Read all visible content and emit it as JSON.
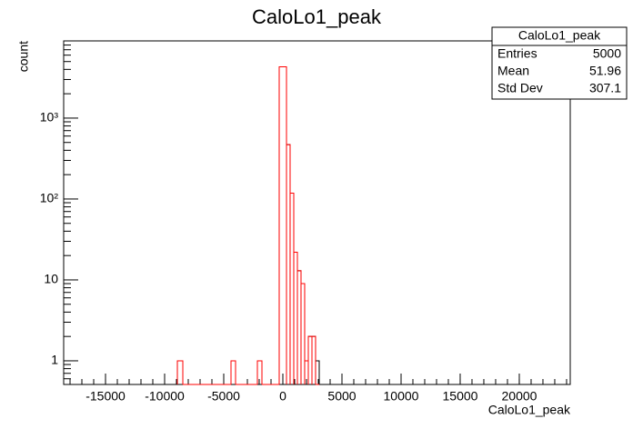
{
  "chart_data": {
    "type": "histogram",
    "title": "CaloLo1_peak",
    "x_label": "CaloLo1_peak",
    "y_label": "count",
    "bins": [
      -8923,
      -8462,
      -4385,
      -4000,
      -2154,
      -1769,
      -308,
      308,
      615,
      923,
      1231,
      1538,
      1846,
      2154,
      2462,
      2769,
      3077
    ],
    "series": [
      {
        "color": "#000000",
        "values": [
          1,
          0,
          1,
          0,
          1,
          0,
          4300,
          470,
          118,
          22,
          13,
          9,
          1,
          2,
          2,
          1
        ]
      },
      {
        "color": "#ff0000",
        "values": [
          1,
          0,
          1,
          0,
          1,
          0,
          4300,
          470,
          118,
          22,
          13,
          9,
          1,
          2,
          2,
          0
        ]
      }
    ],
    "xlim": [
      -18540,
      24310
    ],
    "xticks": [
      -15000,
      -10000,
      -5000,
      0,
      5000,
      10000,
      15000,
      20000
    ],
    "ylim": [
      0.51,
      9000
    ],
    "yticks": [
      1,
      10,
      {
        "value": 100,
        "label": "10²"
      },
      {
        "value": 1000,
        "label": "10³"
      }
    ],
    "log_y": true,
    "stats": {
      "title": "CaloLo1_peak",
      "rows": [
        [
          "Entries",
          "5000"
        ],
        [
          "Mean",
          "51.96"
        ],
        [
          "Std Dev",
          "307.1"
        ]
      ]
    }
  }
}
